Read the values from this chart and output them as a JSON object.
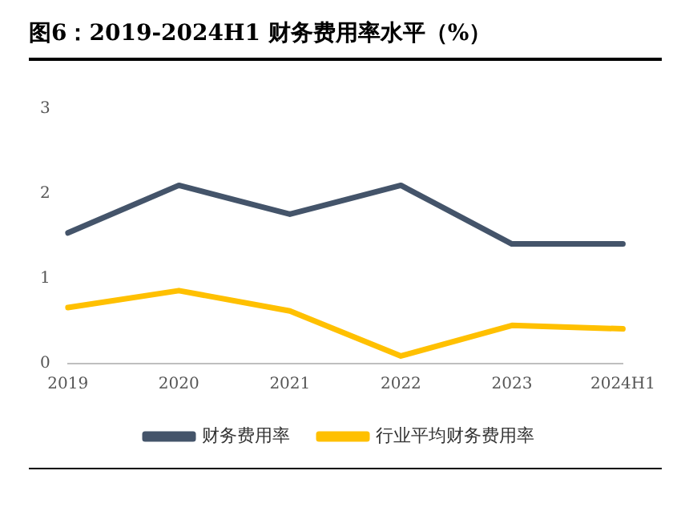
{
  "chart_data": {
    "type": "line",
    "title": "图6：2019-2024H1 财务费用率水平（%）",
    "categories": [
      "2019",
      "2020",
      "2021",
      "2022",
      "2023",
      "2024H1"
    ],
    "series": [
      {
        "name": "财务费用率",
        "color": "#44546a",
        "values": [
          1.54,
          2.1,
          1.76,
          2.1,
          1.41,
          1.41
        ]
      },
      {
        "name": "行业平均财务费用率",
        "color": "#ffc000",
        "values": [
          0.66,
          0.86,
          0.62,
          0.09,
          0.45,
          0.41
        ]
      }
    ],
    "ylim": [
      0,
      3
    ],
    "yticks": [
      0,
      1,
      2,
      3
    ],
    "grid": false,
    "legend": "bottom",
    "marker": "none",
    "line_style": "solid"
  }
}
